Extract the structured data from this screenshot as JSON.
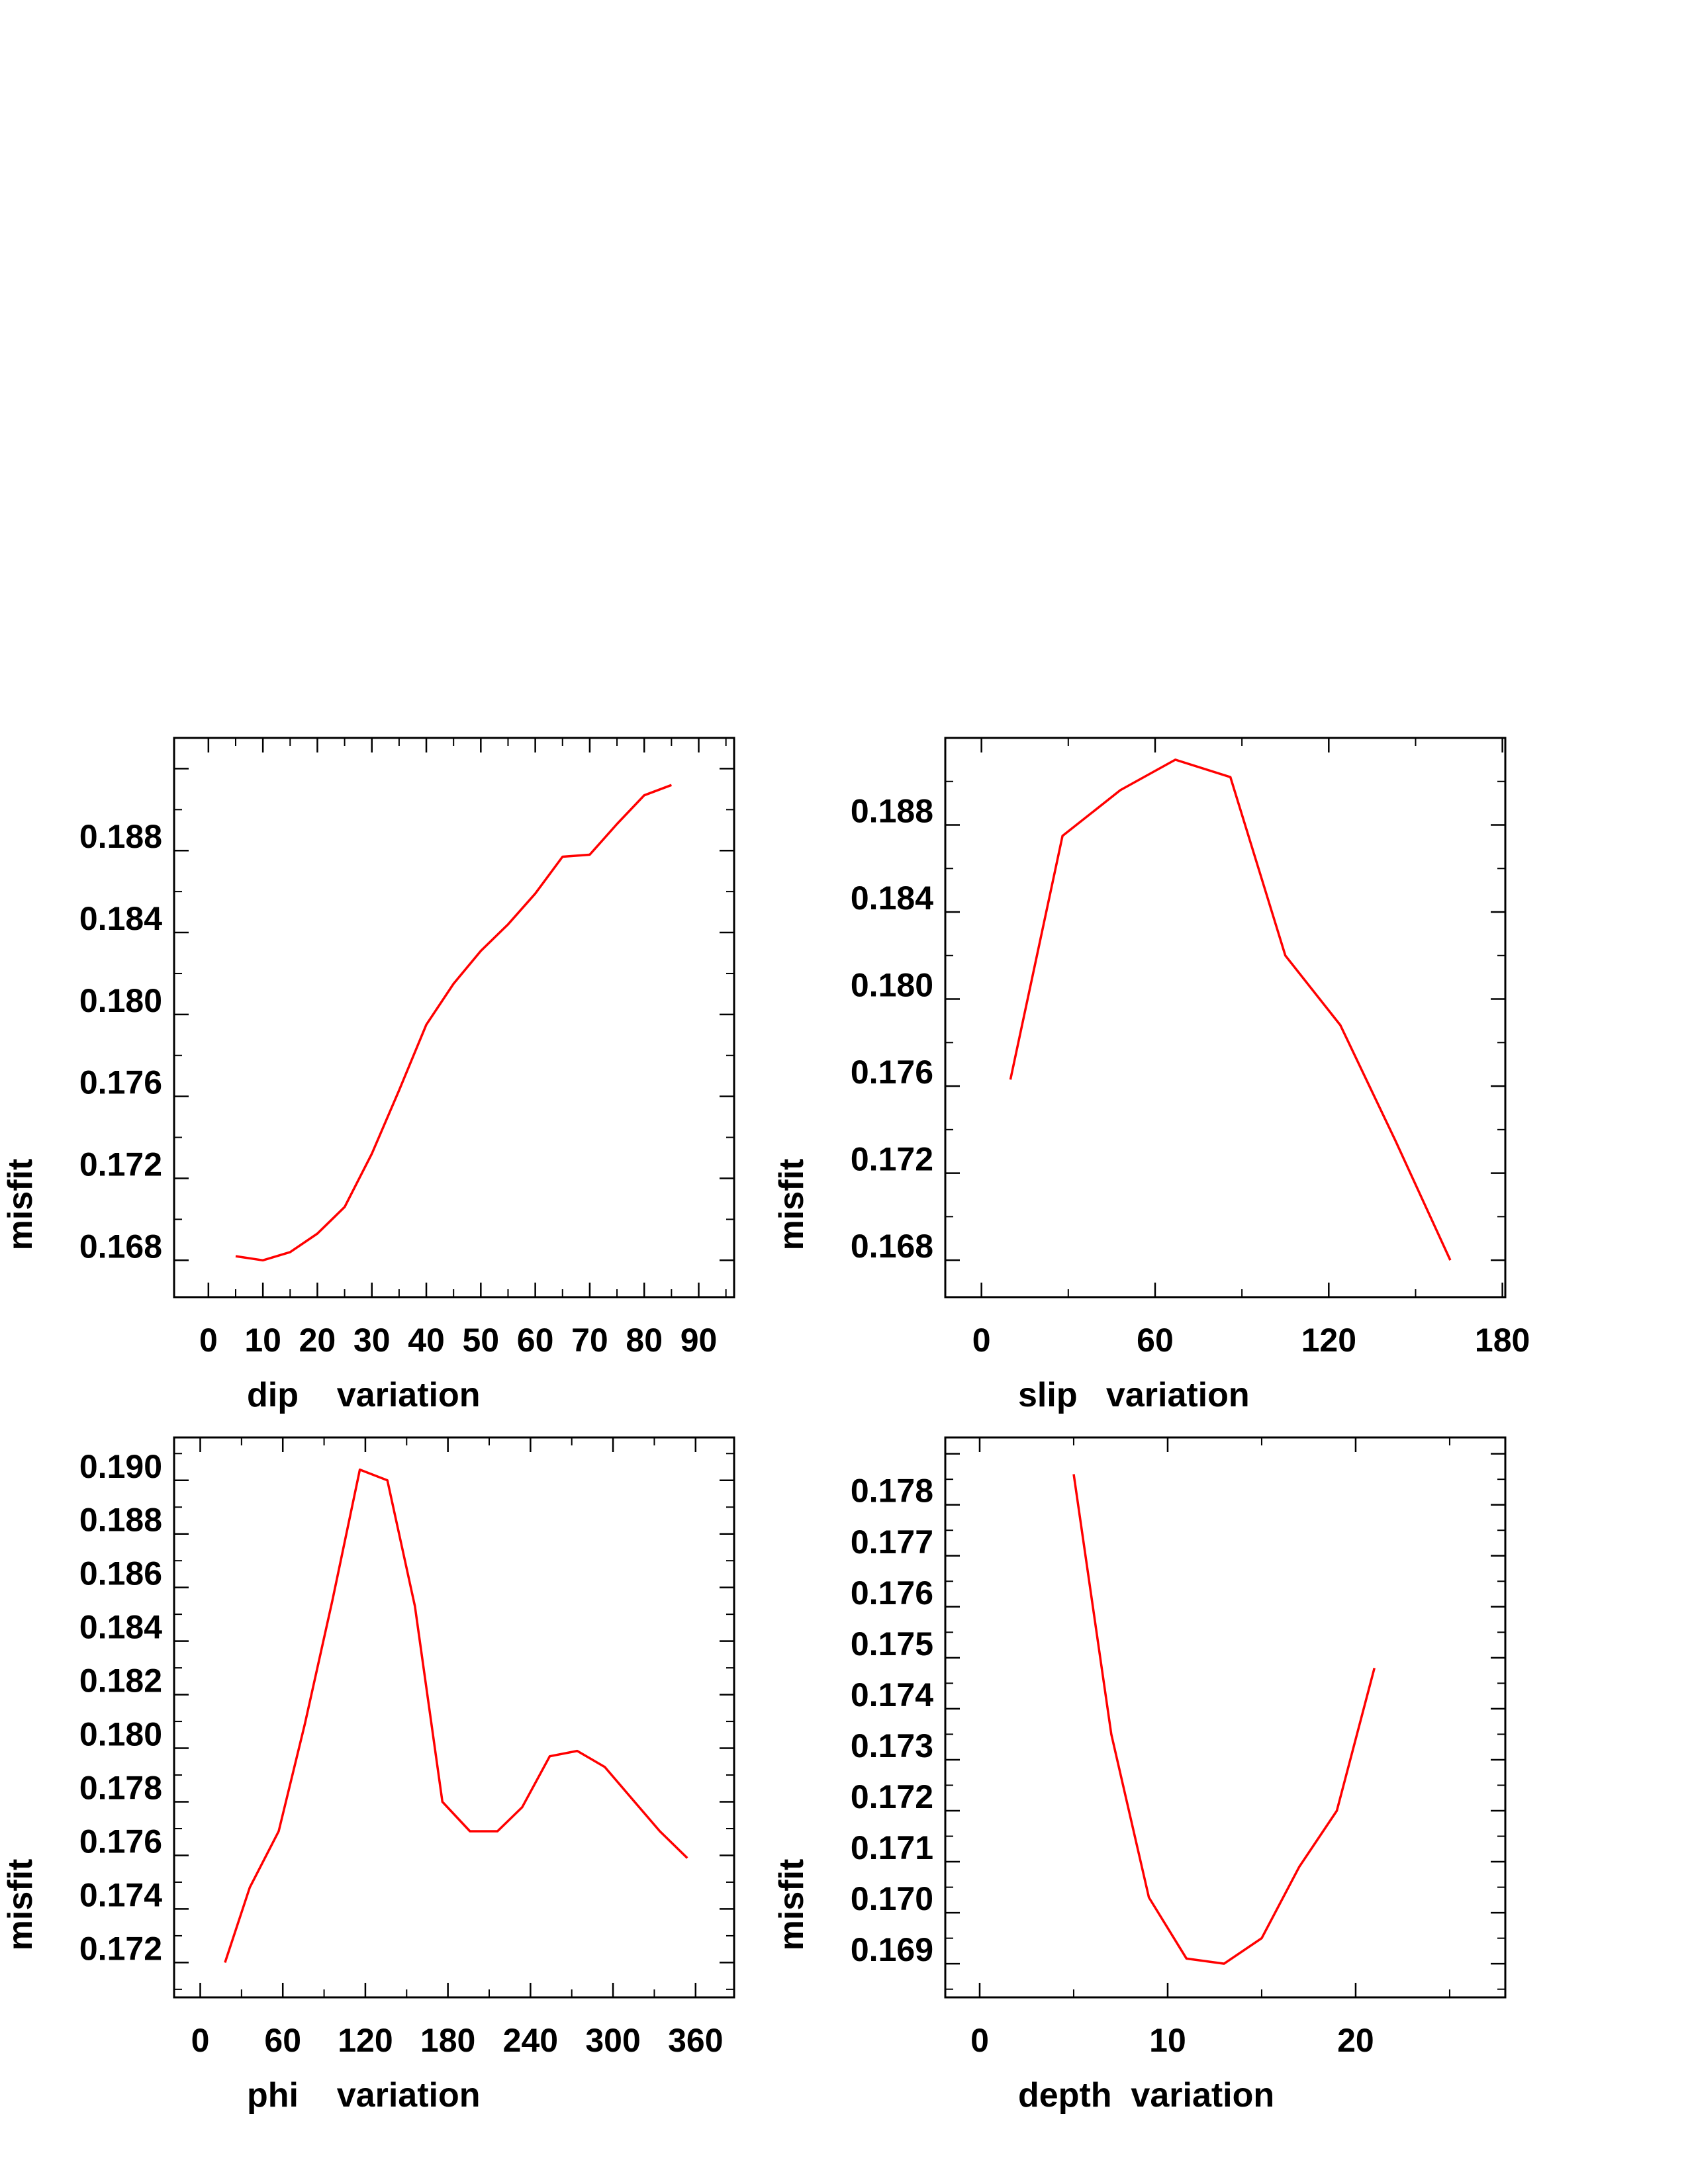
{
  "chart_data": [
    {
      "type": "line",
      "xlabel": "dip    variation",
      "ylabel": "misfit",
      "xticks": [
        0,
        10,
        20,
        30,
        40,
        50,
        60,
        70,
        80,
        90
      ],
      "yticks": [
        0.168,
        0.172,
        0.176,
        0.18,
        0.184,
        0.188
      ],
      "ytick_labels": [
        "0.168",
        "0.172",
        "0.176",
        "0.180",
        "0.184",
        "0.188"
      ],
      "xlim": [
        -6.3,
        96.5
      ],
      "ylim": [
        0.1662,
        0.1935
      ],
      "grid": false,
      "series": [
        {
          "color": "#ff0000",
          "x": [
            5,
            10,
            15,
            20,
            25,
            30,
            35,
            40,
            45,
            50,
            55,
            60,
            65,
            70,
            75,
            80,
            85
          ],
          "y": [
            0.1682,
            0.168,
            0.1684,
            0.1693,
            0.1706,
            0.1732,
            0.1763,
            0.1795,
            0.1815,
            0.1831,
            0.1844,
            0.1859,
            0.1877,
            0.1878,
            0.1893,
            0.1907,
            0.1912
          ]
        }
      ]
    },
    {
      "type": "line",
      "xlabel": "slip   variation",
      "ylabel": "misfit",
      "xticks": [
        0,
        60,
        120,
        180
      ],
      "yticks": [
        0.168,
        0.172,
        0.176,
        0.18,
        0.184,
        0.188
      ],
      "ytick_labels": [
        "0.168",
        "0.172",
        "0.176",
        "0.180",
        "0.184",
        "0.188"
      ],
      "xlim": [
        -12.5,
        181
      ],
      "ylim": [
        0.1663,
        0.192
      ],
      "grid": false,
      "series": [
        {
          "color": "#ff0000",
          "x": [
            10,
            28,
            48,
            67,
            86,
            105,
            124,
            143,
            162
          ],
          "y": [
            0.1763,
            0.1875,
            0.1896,
            0.191,
            0.1902,
            0.182,
            0.1788,
            0.1735,
            0.168
          ]
        }
      ]
    },
    {
      "type": "line",
      "xlabel": "phi    variation",
      "ylabel": "misfit",
      "xticks": [
        0,
        60,
        120,
        180,
        240,
        300,
        360
      ],
      "yticks": [
        0.172,
        0.174,
        0.176,
        0.178,
        0.18,
        0.182,
        0.184,
        0.186,
        0.188,
        0.19
      ],
      "ytick_labels": [
        "0.172",
        "0.174",
        "0.176",
        "0.178",
        "0.180",
        "0.182",
        "0.184",
        "0.186",
        "0.188",
        "0.190"
      ],
      "xlim": [
        -19,
        388
      ],
      "ylim": [
        0.1707,
        0.1916
      ],
      "grid": false,
      "series": [
        {
          "color": "#ff0000",
          "x": [
            18,
            36,
            57,
            76,
            96,
            116,
            136,
            156,
            176,
            196,
            216,
            234,
            254,
            274,
            294,
            314,
            334,
            354
          ],
          "y": [
            0.172,
            0.1748,
            0.1769,
            0.1809,
            0.1855,
            0.1904,
            0.19,
            0.1853,
            0.178,
            0.1769,
            0.1769,
            0.1778,
            0.1797,
            0.1799,
            0.1793,
            0.1781,
            0.1769,
            0.1759
          ]
        }
      ]
    },
    {
      "type": "line",
      "xlabel": "depth  variation",
      "ylabel": "misfit",
      "xticks": [
        0,
        10,
        20
      ],
      "yticks": [
        0.169,
        0.17,
        0.171,
        0.172,
        0.173,
        0.174,
        0.175,
        0.176,
        0.177,
        0.178
      ],
      "ytick_labels": [
        "0.169",
        "0.170",
        "0.171",
        "0.172",
        "0.173",
        "0.174",
        "0.175",
        "0.176",
        "0.177",
        "0.178"
      ],
      "xlim": [
        -1.83,
        27.96
      ],
      "ylim": [
        0.16834,
        0.17932
      ],
      "grid": false,
      "series": [
        {
          "color": "#ff0000",
          "x": [
            5,
            7,
            9,
            11,
            13,
            15,
            17,
            19,
            21
          ],
          "y": [
            0.1786,
            0.1735,
            0.1703,
            0.1691,
            0.169,
            0.1695,
            0.1709,
            0.172,
            0.1748
          ]
        }
      ]
    }
  ]
}
